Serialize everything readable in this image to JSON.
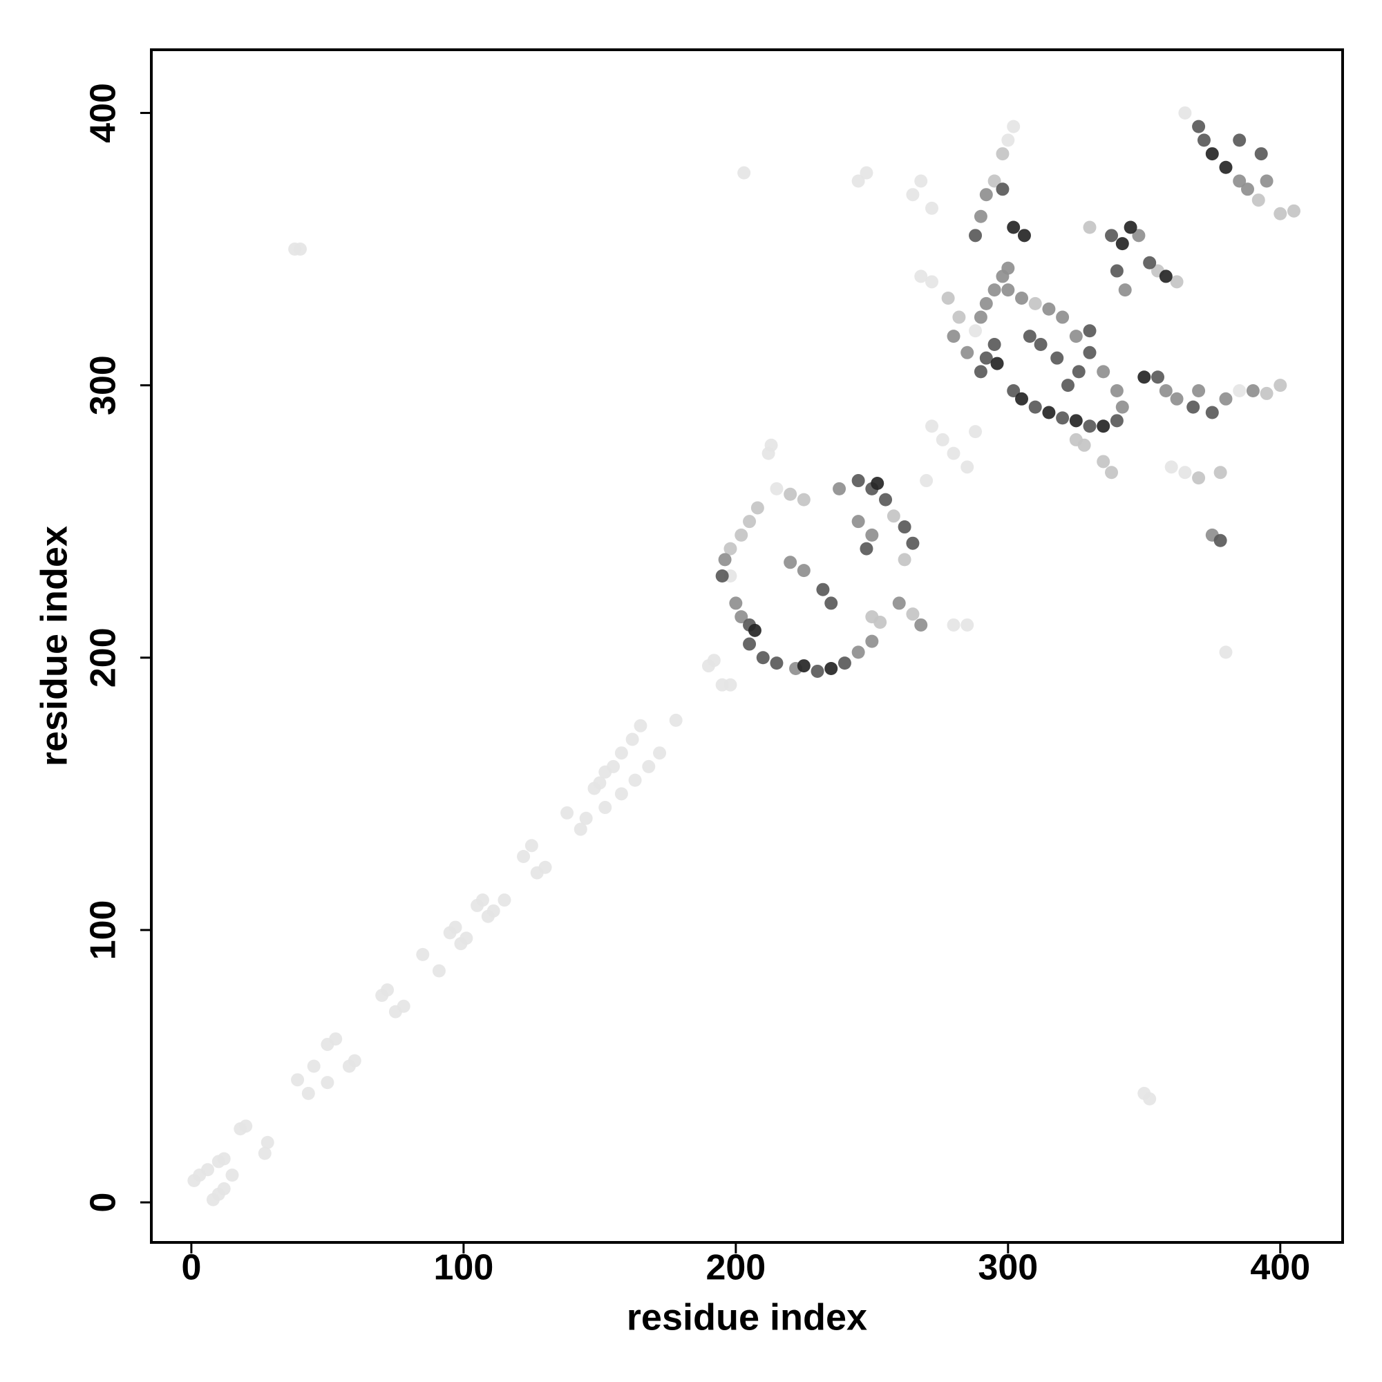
{
  "chart_data": {
    "type": "scatter",
    "xlabel": "residue index",
    "ylabel": "residue index",
    "xlim": [
      -14.7,
      422.9
    ],
    "ylim": [
      -14.7,
      423.2
    ],
    "xticks": [
      0,
      100,
      200,
      300,
      400
    ],
    "yticks": [
      0,
      100,
      200,
      300,
      400
    ],
    "grid": false,
    "series": [
      {
        "color": "#e5e5e5",
        "x": [
          1,
          3,
          6,
          10,
          12,
          8,
          10,
          12,
          15,
          18,
          20,
          27,
          28,
          39,
          45,
          43,
          50,
          50,
          53,
          60,
          58,
          70,
          72,
          75,
          78,
          85,
          91,
          95,
          97,
          99,
          101,
          105,
          107,
          109,
          111,
          115,
          122,
          127,
          130,
          125,
          138,
          145,
          143,
          148,
          150,
          152,
          155,
          158,
          162,
          165,
          152,
          158,
          163,
          168,
          172,
          178,
          190,
          192,
          195,
          198,
          203,
          38,
          40,
          350,
          352,
          380,
          285,
          280,
          245,
          248,
          265,
          268,
          272,
          300,
          302,
          268,
          272,
          272,
          276,
          280,
          285,
          288,
          270,
          365,
          360,
          365,
          212,
          213,
          215,
          198,
          288,
          385
        ],
        "y": [
          8,
          10,
          12,
          15,
          16,
          1,
          3,
          5,
          10,
          27,
          28,
          18,
          22,
          45,
          50,
          40,
          44,
          58,
          60,
          52,
          50,
          76,
          78,
          70,
          72,
          91,
          85,
          99,
          101,
          95,
          97,
          109,
          111,
          105,
          107,
          111,
          127,
          121,
          123,
          131,
          143,
          141,
          137,
          152,
          154,
          158,
          160,
          165,
          170,
          175,
          145,
          150,
          155,
          160,
          165,
          177,
          197,
          199,
          190,
          190,
          378,
          350,
          350,
          40,
          38,
          202,
          212,
          212,
          375,
          378,
          370,
          375,
          365,
          390,
          395,
          340,
          338,
          285,
          280,
          275,
          270,
          283,
          265,
          400,
          270,
          268,
          275,
          278,
          262,
          230,
          320,
          298
        ]
      },
      {
        "color": "#c4c4c4",
        "x": [
          198,
          202,
          205,
          208,
          220,
          225,
          250,
          253,
          265,
          278,
          282,
          298,
          295,
          370,
          378,
          338,
          335,
          325,
          328,
          392,
          400,
          405,
          355,
          362,
          330,
          395,
          400,
          262,
          258,
          310
        ],
        "y": [
          240,
          245,
          250,
          255,
          260,
          258,
          215,
          213,
          216,
          332,
          325,
          385,
          375,
          266,
          268,
          268,
          272,
          280,
          278,
          368,
          363,
          364,
          342,
          338,
          358,
          297,
          300,
          236,
          252,
          330
        ]
      },
      {
        "color": "#8f8f8f",
        "x": [
          200,
          202,
          196,
          238,
          245,
          250,
          260,
          268,
          222,
          245,
          250,
          280,
          285,
          290,
          292,
          295,
          298,
          300,
          315,
          305,
          300,
          320,
          325,
          335,
          340,
          342,
          292,
          290,
          370,
          380,
          390,
          375,
          343,
          348,
          385,
          388,
          395,
          358,
          362,
          220,
          225
        ],
        "y": [
          220,
          215,
          236,
          262,
          250,
          245,
          220,
          212,
          196,
          202,
          206,
          318,
          312,
          325,
          330,
          335,
          340,
          343,
          328,
          332,
          335,
          325,
          318,
          305,
          298,
          292,
          370,
          362,
          298,
          295,
          298,
          245,
          335,
          355,
          375,
          372,
          375,
          298,
          295,
          235,
          232
        ]
      },
      {
        "color": "#5a5a5a",
        "x": [
          195,
          205,
          205,
          210,
          215,
          230,
          240,
          245,
          250,
          255,
          262,
          265,
          232,
          235,
          248,
          290,
          292,
          295,
          302,
          310,
          320,
          330,
          340,
          330,
          322,
          318,
          312,
          308,
          288,
          298,
          340,
          338,
          352,
          355,
          368,
          370,
          372,
          393,
          385,
          375,
          378,
          326,
          330
        ],
        "y": [
          230,
          212,
          205,
          200,
          198,
          195,
          198,
          265,
          262,
          258,
          248,
          242,
          225,
          220,
          240,
          305,
          310,
          315,
          298,
          292,
          288,
          285,
          287,
          312,
          300,
          310,
          315,
          318,
          355,
          372,
          342,
          355,
          345,
          303,
          292,
          395,
          390,
          385,
          390,
          290,
          243,
          305,
          320
        ]
      },
      {
        "color": "#262626",
        "x": [
          207,
          235,
          252,
          305,
          315,
          335,
          302,
          306,
          345,
          342,
          358,
          375,
          380,
          350,
          225,
          296,
          325
        ],
        "y": [
          210,
          196,
          264,
          295,
          290,
          285,
          358,
          355,
          358,
          352,
          340,
          385,
          380,
          303,
          197,
          308,
          287
        ]
      }
    ]
  }
}
